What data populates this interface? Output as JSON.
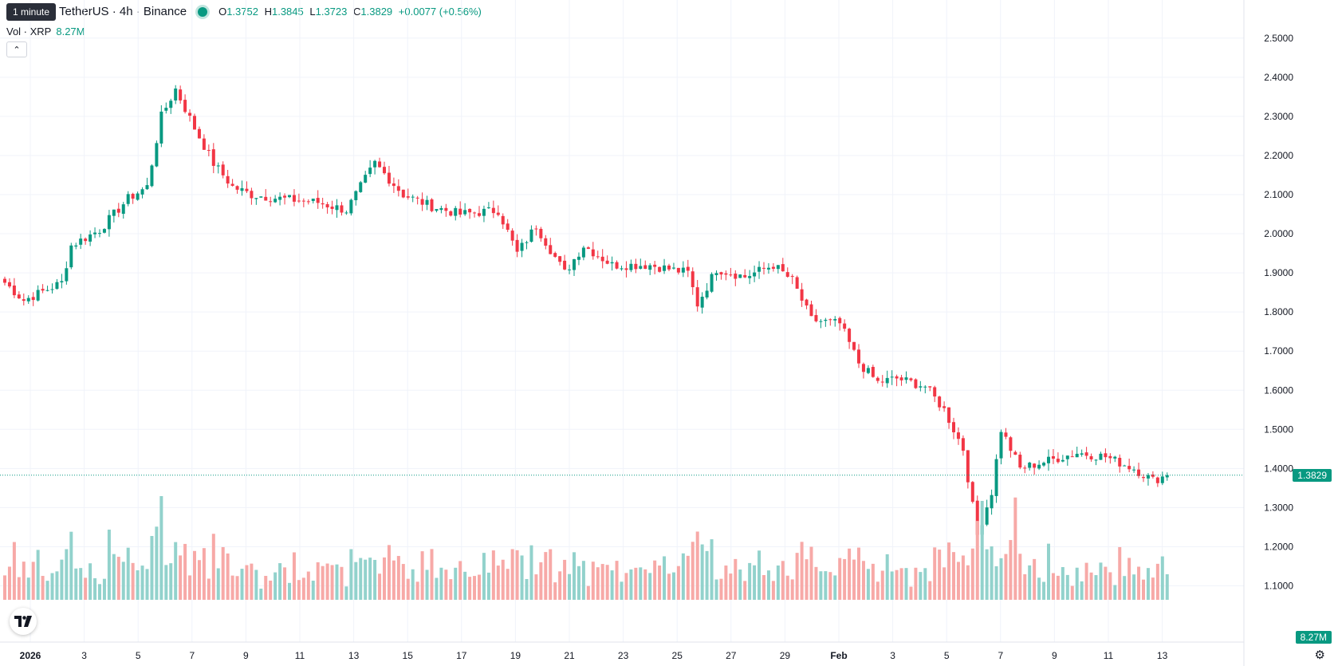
{
  "tooltip": "1 minute",
  "header": {
    "symbol": "TetherUS · 4h · Binance",
    "open_label": "O",
    "open": "1.3752",
    "high_label": "H",
    "high": "1.3845",
    "low_label": "L",
    "low": "1.3723",
    "close_label": "C",
    "close": "1.3829",
    "change": "+0.0077 (+0.56%)"
  },
  "volume": {
    "label": "Vol · XRP",
    "value": "8.27M",
    "tag": "8.27M"
  },
  "price_tag": "1.3829",
  "colors": {
    "up": "#089981",
    "down": "#f23645",
    "vol_up": "#92d2cc",
    "vol_down": "#f7a9a7"
  },
  "icons": {
    "logo": "tradingview-logo-icon",
    "settings": "gear-icon",
    "collapse": "chevron-up-icon"
  },
  "chart_data": {
    "type": "candlestick",
    "title": "",
    "ylim": [
      0.995,
      2.52
    ],
    "y_ticks": [
      "2.5000",
      "2.4000",
      "2.3000",
      "2.2000",
      "2.1000",
      "2.0000",
      "1.9000",
      "1.8000",
      "1.7000",
      "1.6000",
      "1.5000",
      "1.4000",
      "1.3000",
      "1.2000",
      "1.1000"
    ],
    "x_ticks": [
      "2026",
      "3",
      "5",
      "7",
      "9",
      "11",
      "13",
      "15",
      "17",
      "19",
      "21",
      "23",
      "25",
      "27",
      "29",
      "Feb",
      "3",
      "5",
      "7",
      "9",
      "11",
      "13"
    ],
    "current_price": 1.3829,
    "close_keypoints": [
      [
        0,
        1.875
      ],
      [
        4,
        1.83
      ],
      [
        12,
        1.875
      ],
      [
        14,
        1.97
      ],
      [
        20,
        2.01
      ],
      [
        26,
        2.09
      ],
      [
        30,
        2.12
      ],
      [
        33,
        2.3
      ],
      [
        36,
        2.37
      ],
      [
        40,
        2.27
      ],
      [
        44,
        2.18
      ],
      [
        48,
        2.12
      ],
      [
        52,
        2.1
      ],
      [
        58,
        2.09
      ],
      [
        66,
        2.08
      ],
      [
        72,
        2.06
      ],
      [
        78,
        2.18
      ],
      [
        84,
        2.1
      ],
      [
        90,
        2.07
      ],
      [
        96,
        2.05
      ],
      [
        104,
        2.06
      ],
      [
        108,
        1.95
      ],
      [
        112,
        2.02
      ],
      [
        118,
        1.9
      ],
      [
        122,
        1.97
      ],
      [
        128,
        1.92
      ],
      [
        136,
        1.92
      ],
      [
        144,
        1.9
      ],
      [
        146,
        1.82
      ],
      [
        150,
        1.91
      ],
      [
        156,
        1.89
      ],
      [
        162,
        1.92
      ],
      [
        166,
        1.88
      ],
      [
        170,
        1.78
      ],
      [
        176,
        1.77
      ],
      [
        180,
        1.67
      ],
      [
        184,
        1.62
      ],
      [
        188,
        1.63
      ],
      [
        194,
        1.61
      ],
      [
        198,
        1.55
      ],
      [
        202,
        1.45
      ],
      [
        205,
        1.23
      ],
      [
        208,
        1.34
      ],
      [
        210,
        1.5
      ],
      [
        214,
        1.4
      ],
      [
        220,
        1.42
      ],
      [
        226,
        1.44
      ],
      [
        232,
        1.43
      ],
      [
        238,
        1.4
      ],
      [
        242,
        1.37
      ],
      [
        245,
        1.3829
      ]
    ],
    "volume_range": [
      0,
      5.0
    ]
  }
}
